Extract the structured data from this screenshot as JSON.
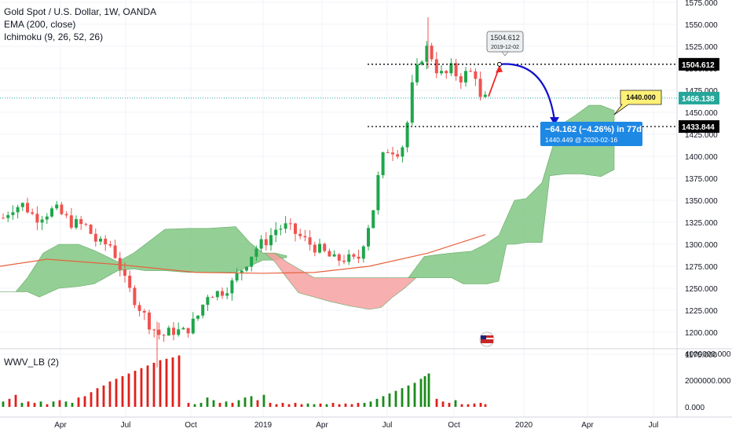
{
  "legend": {
    "title": "Gold Spot / U.S. Dollar, 1W, OANDA",
    "ema": "EMA (200, close)",
    "ichimoku": "Ichimoku (9, 26, 52, 26)",
    "indicator": "WWV_LB (2)"
  },
  "colors": {
    "up": "#26a69a",
    "upCandle": "#1fa64a",
    "down": "#ef5350",
    "ema": "#e8613c",
    "cloudBull": "#81c784",
    "cloudBear": "#f7a1a1",
    "volUp": "#1b8a1b",
    "volDown": "#e0201b",
    "lastPrice": "#26a69a",
    "drawArrow": "#1111cc",
    "redArrow": "#ef2828",
    "box": "#1e88e5",
    "callout": "#fff176"
  },
  "chart_data": [
    {
      "type": "candlestick",
      "symbol": "Gold Spot / U.S. Dollar, 1W, OANDA",
      "y_ticks": [
        "1575.000",
        "1550.000",
        "1525.000",
        "1500.000",
        "1475.000",
        "1450.000",
        "1425.000",
        "1400.000",
        "1375.000",
        "1350.000",
        "1325.000",
        "1300.000",
        "1275.000",
        "1250.000",
        "1225.000",
        "1200.000",
        "1175.000"
      ],
      "ylim": [
        1158,
        1578
      ],
      "x_ticks": [
        "Apr",
        "Jul",
        "Oct",
        "2019",
        "Apr",
        "Jul",
        "Oct",
        "2020",
        "Apr",
        "Jul"
      ],
      "last_price": "1466.138",
      "price_levels": [
        "1504.612",
        "1433.844"
      ],
      "callout": "1440.000",
      "point_label": {
        "price": "1504.612",
        "date": "2019-12-02"
      },
      "measure": {
        "change": "−64.162 (−4.26%) in 77d",
        "target": "1440.449 @ 2020-02-16"
      },
      "ohlc_sample": [
        {
          "date": "2018-01",
          "close": 1346
        },
        {
          "date": "2018-04",
          "close": 1335
        },
        {
          "date": "2018-06",
          "close": 1268
        },
        {
          "date": "2018-08",
          "close": 1178
        },
        {
          "date": "2018-12",
          "close": 1283
        },
        {
          "date": "2019-02",
          "close": 1320
        },
        {
          "date": "2019-05",
          "close": 1284
        },
        {
          "date": "2019-06",
          "close": 1405
        },
        {
          "date": "2019-08",
          "close": 1497
        },
        {
          "date": "2019-09",
          "close": 1510
        },
        {
          "date": "2019-11",
          "close": 1465
        }
      ],
      "ema_200": [
        1275,
        1283,
        1277,
        1268,
        1267,
        1268,
        1275,
        1290,
        1311
      ]
    },
    {
      "type": "bar",
      "name": "WWV_LB (2)",
      "y_ticks": [
        "4000000.000",
        "2000000.000",
        "0.000"
      ],
      "ylim": [
        0,
        4000000
      ]
    }
  ]
}
